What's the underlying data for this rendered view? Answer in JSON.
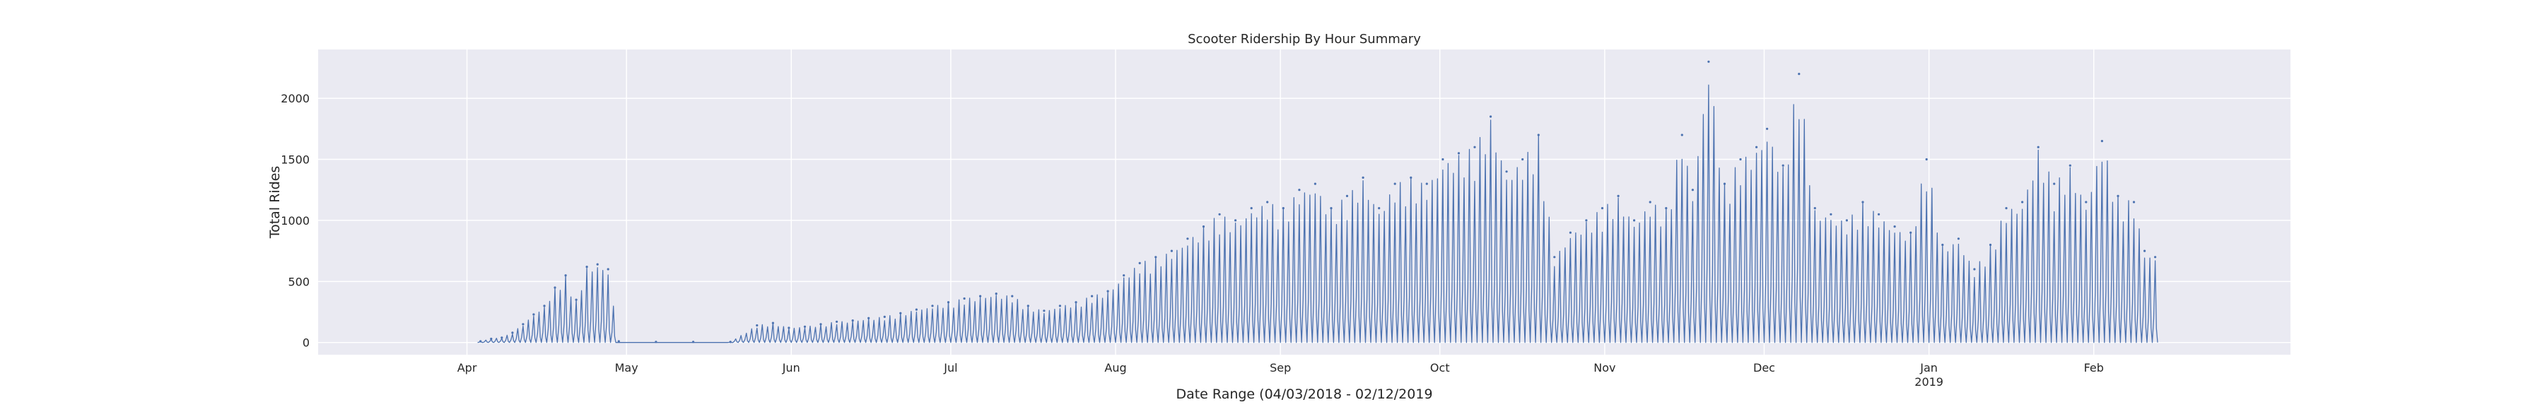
{
  "chart_data": {
    "type": "line",
    "title": "Scooter Ridership By Hour Summary",
    "xlabel": "Date Range (04/03/2018 - 02/12/2019",
    "ylabel": "Total Rides",
    "xlim": [
      "2018-03-04",
      "2019-03-10"
    ],
    "ylim": [
      -100,
      2400
    ],
    "yticks": [
      0,
      500,
      1000,
      1500,
      2000
    ],
    "xticks": [
      {
        "date": "2018-04-01",
        "label": "Apr",
        "sublabel": ""
      },
      {
        "date": "2018-05-01",
        "label": "May",
        "sublabel": ""
      },
      {
        "date": "2018-06-01",
        "label": "Jun",
        "sublabel": ""
      },
      {
        "date": "2018-07-01",
        "label": "Jul",
        "sublabel": ""
      },
      {
        "date": "2018-08-01",
        "label": "Aug",
        "sublabel": ""
      },
      {
        "date": "2018-09-01",
        "label": "Sep",
        "sublabel": ""
      },
      {
        "date": "2018-10-01",
        "label": "Oct",
        "sublabel": ""
      },
      {
        "date": "2018-11-01",
        "label": "Nov",
        "sublabel": ""
      },
      {
        "date": "2018-12-01",
        "label": "Dec",
        "sublabel": ""
      },
      {
        "date": "2019-01-01",
        "label": "Jan",
        "sublabel": "2019"
      },
      {
        "date": "2019-02-01",
        "label": "Feb",
        "sublabel": ""
      }
    ],
    "grid": true,
    "colors": {
      "line": "#4c72b0",
      "plot_background": "#eaeaf2",
      "grid": "#ffffff",
      "text": "#262626"
    },
    "series": [
      {
        "name": "",
        "x": [
          "2018-04-03",
          "2018-04-05",
          "2018-04-07",
          "2018-04-09",
          "2018-04-11",
          "2018-04-13",
          "2018-04-15",
          "2018-04-17",
          "2018-04-19",
          "2018-04-21",
          "2018-04-23",
          "2018-04-25",
          "2018-04-27",
          "2018-04-29",
          "2018-05-06",
          "2018-05-13",
          "2018-05-20",
          "2018-05-25",
          "2018-05-28",
          "2018-05-31",
          "2018-06-03",
          "2018-06-06",
          "2018-06-09",
          "2018-06-12",
          "2018-06-15",
          "2018-06-18",
          "2018-06-21",
          "2018-06-24",
          "2018-06-27",
          "2018-06-30",
          "2018-07-03",
          "2018-07-06",
          "2018-07-09",
          "2018-07-12",
          "2018-07-15",
          "2018-07-18",
          "2018-07-21",
          "2018-07-24",
          "2018-07-27",
          "2018-07-30",
          "2018-08-02",
          "2018-08-05",
          "2018-08-08",
          "2018-08-11",
          "2018-08-14",
          "2018-08-17",
          "2018-08-20",
          "2018-08-23",
          "2018-08-26",
          "2018-08-29",
          "2018-09-01",
          "2018-09-04",
          "2018-09-07",
          "2018-09-10",
          "2018-09-13",
          "2018-09-16",
          "2018-09-19",
          "2018-09-22",
          "2018-09-25",
          "2018-09-28",
          "2018-10-01",
          "2018-10-04",
          "2018-10-07",
          "2018-10-10",
          "2018-10-13",
          "2018-10-16",
          "2018-10-19",
          "2018-10-22",
          "2018-10-25",
          "2018-10-28",
          "2018-10-31",
          "2018-11-03",
          "2018-11-06",
          "2018-11-09",
          "2018-11-12",
          "2018-11-15",
          "2018-11-17",
          "2018-11-20",
          "2018-11-23",
          "2018-11-26",
          "2018-11-29",
          "2018-12-01",
          "2018-12-04",
          "2018-12-07",
          "2018-12-10",
          "2018-12-13",
          "2018-12-16",
          "2018-12-19",
          "2018-12-22",
          "2018-12-25",
          "2018-12-28",
          "2018-12-31",
          "2019-01-03",
          "2019-01-06",
          "2019-01-09",
          "2019-01-12",
          "2019-01-15",
          "2019-01-18",
          "2019-01-21",
          "2019-01-24",
          "2019-01-27",
          "2019-01-30",
          "2019-02-02",
          "2019-02-05",
          "2019-02-08",
          "2019-02-10",
          "2019-02-12"
        ],
        "values": [
          10,
          30,
          40,
          80,
          150,
          230,
          300,
          450,
          550,
          350,
          620,
          640,
          600,
          10,
          5,
          5,
          5,
          140,
          160,
          120,
          130,
          150,
          170,
          180,
          200,
          210,
          240,
          270,
          300,
          330,
          360,
          380,
          400,
          380,
          300,
          260,
          300,
          330,
          380,
          420,
          550,
          650,
          700,
          750,
          850,
          950,
          1050,
          1000,
          1100,
          1150,
          1100,
          1250,
          1300,
          1100,
          1200,
          1350,
          1100,
          1300,
          1350,
          1300,
          1500,
          1550,
          1600,
          1850,
          1400,
          1500,
          1700,
          700,
          900,
          1000,
          1100,
          1200,
          1000,
          1150,
          1100,
          1700,
          1250,
          2300,
          1300,
          1500,
          1600,
          1750,
          1450,
          2200,
          1100,
          1050,
          1000,
          1150,
          1050,
          950,
          900,
          1500,
          800,
          850,
          600,
          800,
          1100,
          1150,
          1600,
          1300,
          1450,
          1150,
          1650,
          1200,
          1150,
          750,
          700
        ]
      }
    ]
  }
}
